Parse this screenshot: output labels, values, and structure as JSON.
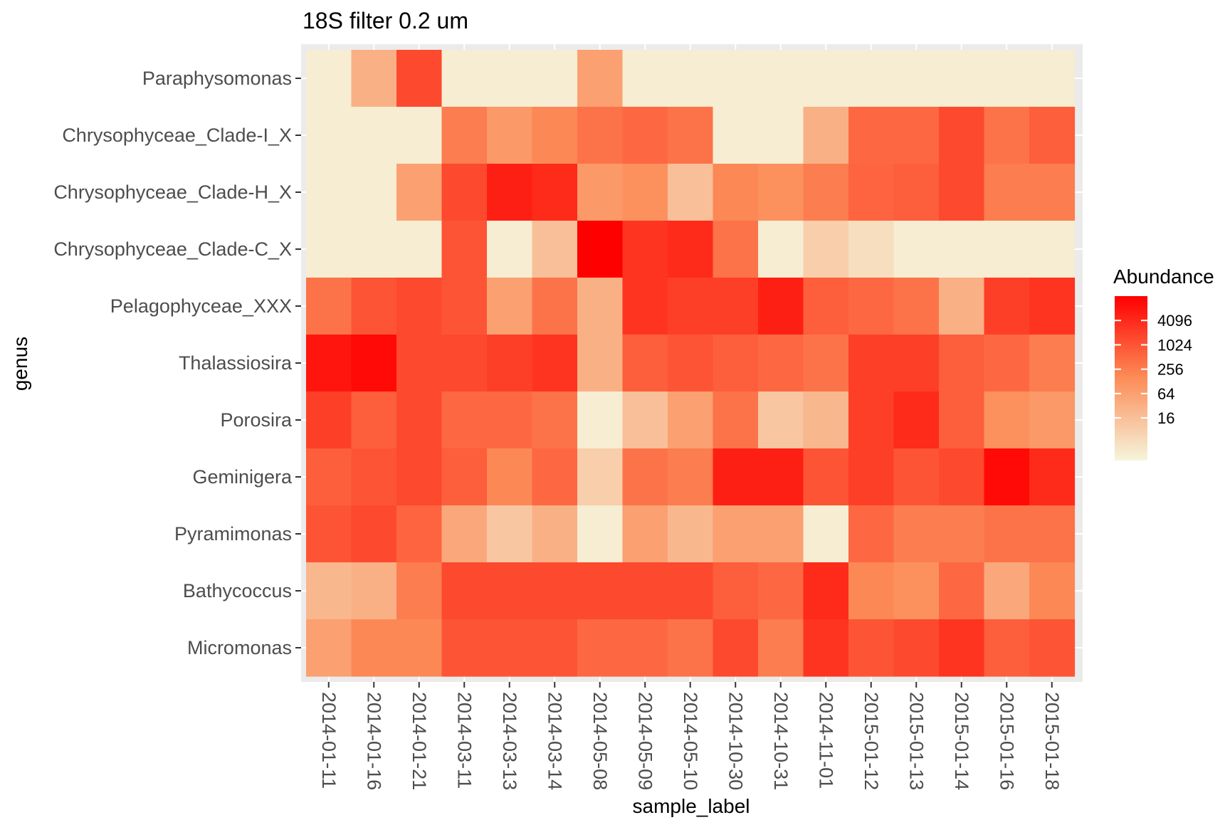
{
  "chart_data": {
    "type": "heatmap",
    "title": "18S filter 0.2 um",
    "xlabel": "sample_label",
    "ylabel": "genus",
    "x": [
      "2014-01-11",
      "2014-01-16",
      "2014-01-21",
      "2014-03-11",
      "2014-03-13",
      "2014-03-14",
      "2014-05-08",
      "2014-05-09",
      "2014-05-10",
      "2014-10-30",
      "2014-10-31",
      "2014-11-01",
      "2015-01-12",
      "2015-01-13",
      "2015-01-14",
      "2015-01-16",
      "2015-01-18"
    ],
    "y": [
      "Paraphysomonas",
      "Chrysophyceae_Clade-I_X",
      "Chrysophyceae_Clade-H_X",
      "Chrysophyceae_Clade-C_X",
      "Pelagophyceae_XXX",
      "Thalassiosira",
      "Porosira",
      "Geminigera",
      "Pyramimonas",
      "Bathycoccus",
      "Micromonas"
    ],
    "log2_abundance": [
      [
        1,
        5,
        10.5,
        1,
        1,
        1,
        6,
        1,
        1,
        1,
        1,
        1,
        1,
        1,
        1,
        1,
        1
      ],
      [
        1,
        1,
        1,
        8,
        6.5,
        7.5,
        8.5,
        9,
        8.5,
        1,
        1,
        5,
        9,
        9,
        10.5,
        8.5,
        9.5
      ],
      [
        1,
        1,
        6,
        10.5,
        12.5,
        12,
        6.5,
        7,
        4,
        7.5,
        7,
        8,
        9.2,
        9.5,
        10.5,
        8,
        8
      ],
      [
        1,
        1,
        1,
        10,
        1,
        4,
        14,
        11.5,
        12,
        8.5,
        1,
        3,
        2,
        1,
        1,
        1,
        1
      ],
      [
        8.5,
        10,
        10.5,
        10,
        6,
        8.5,
        5,
        11.5,
        11,
        11,
        12.5,
        9.5,
        9,
        8.5,
        5,
        11,
        11.5
      ],
      [
        13,
        13.5,
        10.5,
        10.5,
        11,
        11.5,
        5,
        9.5,
        10,
        9.5,
        9,
        8.5,
        11,
        11,
        9.5,
        9,
        8
      ],
      [
        11,
        9.5,
        10.5,
        9,
        9,
        8.5,
        1,
        4,
        6,
        8.5,
        3.5,
        4.5,
        11,
        12,
        9.5,
        7,
        6.5
      ],
      [
        9.5,
        10,
        10.5,
        9.5,
        7.5,
        9,
        3,
        8.5,
        8,
        12.5,
        12.5,
        10,
        11,
        10,
        10.5,
        13.5,
        12
      ],
      [
        10,
        10.5,
        9.2,
        5.5,
        3.5,
        5,
        1,
        6,
        4.5,
        6,
        6,
        1,
        9,
        8,
        8,
        8.5,
        8.5
      ],
      [
        4.5,
        5,
        8,
        10.5,
        10.5,
        10.5,
        10.5,
        10.5,
        10.5,
        9.5,
        9,
        12,
        7.5,
        7,
        9,
        5.5,
        7.5
      ],
      [
        6,
        7.5,
        7.5,
        10,
        10,
        10,
        9,
        9,
        8.5,
        10.5,
        8,
        11.5,
        10,
        10.5,
        11.5,
        9.5,
        10
      ]
    ],
    "legend": {
      "title": "Abundance",
      "ticks": [
        {
          "label": "16",
          "log2": 4
        },
        {
          "label": "64",
          "log2": 6
        },
        {
          "label": "256",
          "log2": 8
        },
        {
          "label": "1024",
          "log2": 10
        },
        {
          "label": "4096",
          "log2": 12
        }
      ],
      "range_log2": [
        0.5,
        14
      ],
      "low_color": "#f5f5dc",
      "high_color": "#ff0000",
      "placement": "right"
    },
    "panel_background": "#ebebeb",
    "scale": "log2",
    "grid": true
  }
}
